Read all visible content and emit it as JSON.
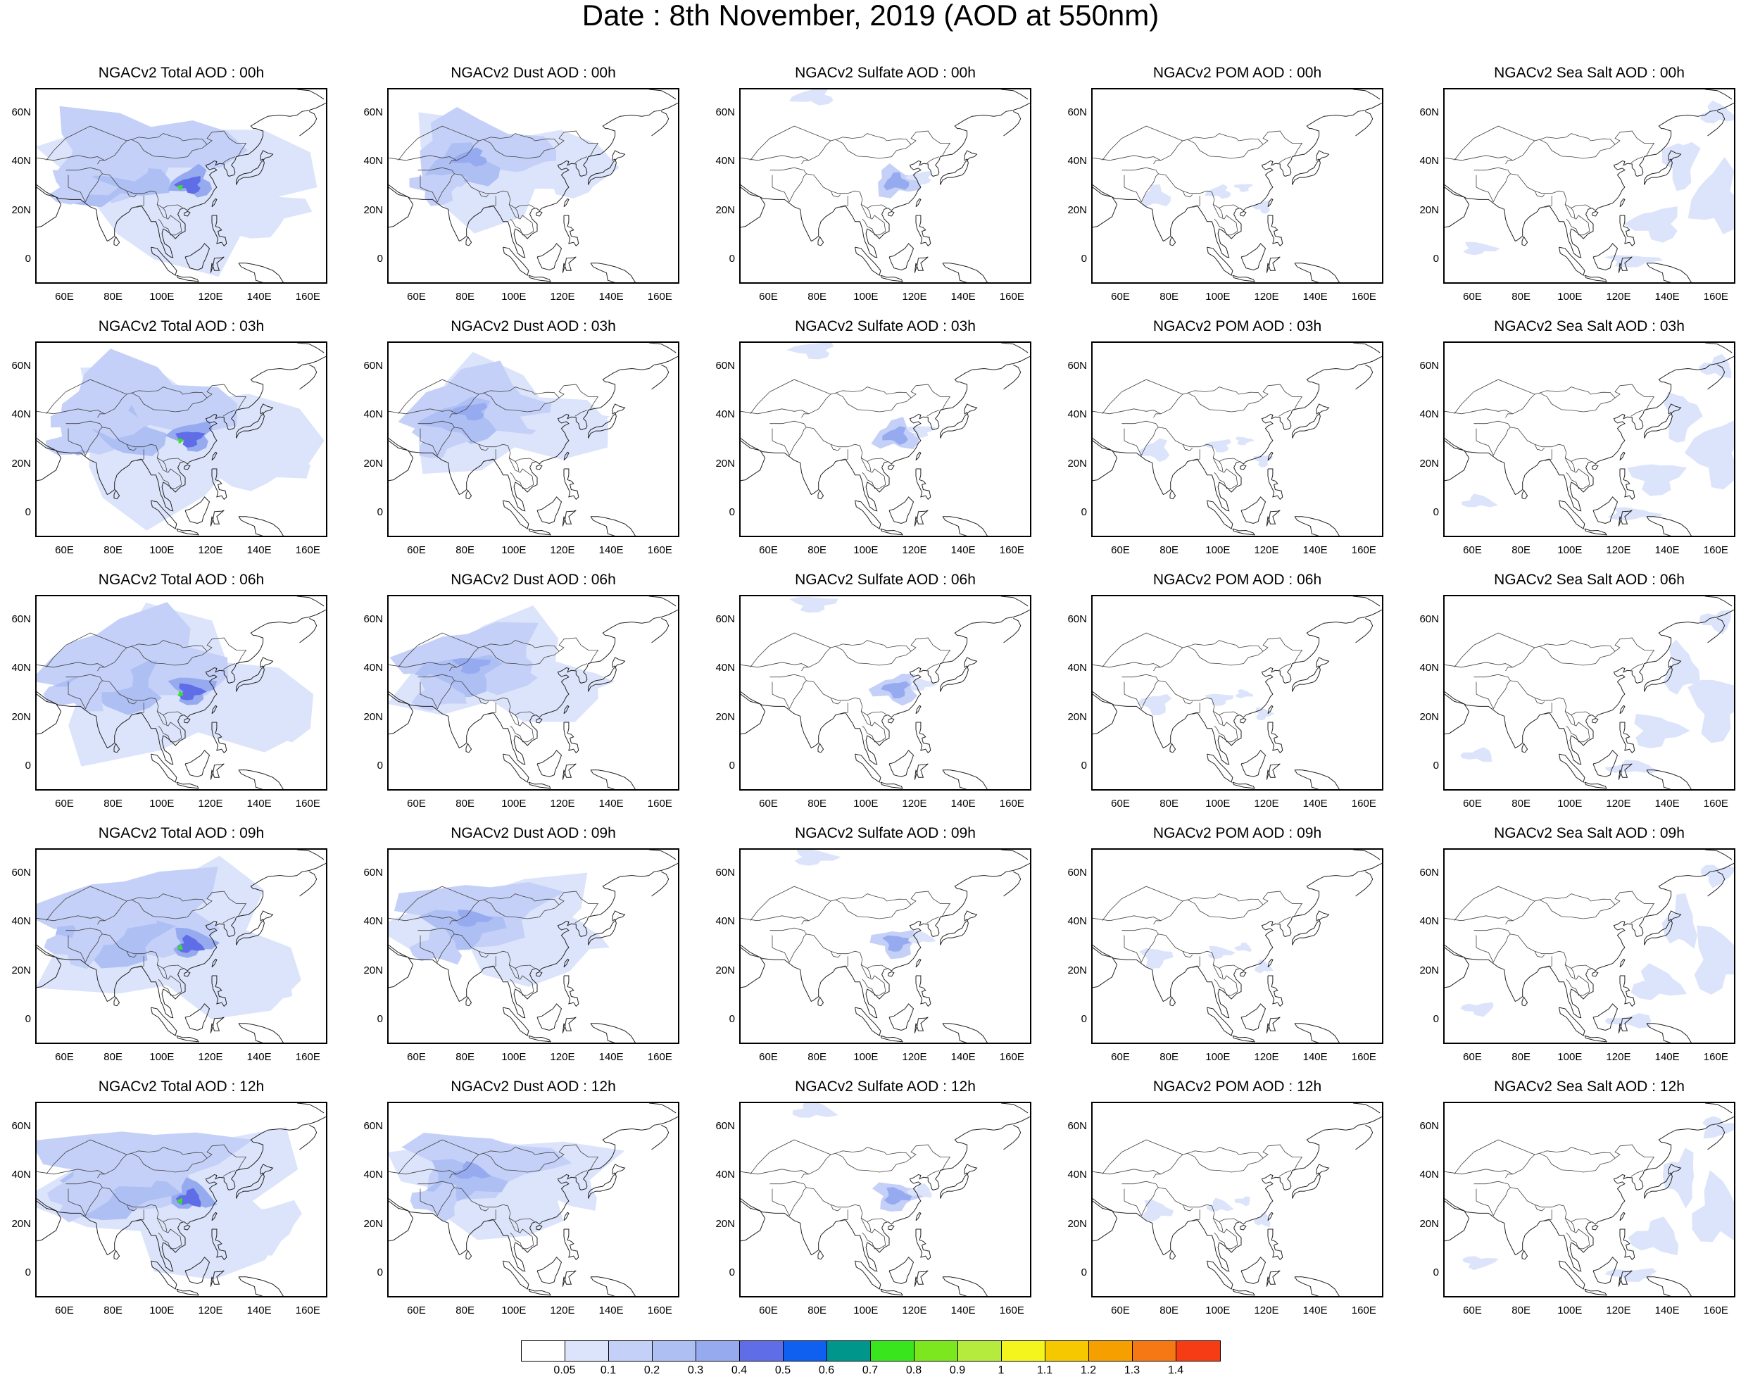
{
  "title": "Date : 8th November, 2019 (AOD at 550nm)",
  "lat_ticks": [
    "60N",
    "40N",
    "20N",
    "0"
  ],
  "lon_ticks": [
    "60E",
    "80E",
    "100E",
    "120E",
    "140E",
    "160E"
  ],
  "lon_range": [
    48,
    168
  ],
  "lat_range": [
    -10,
    70
  ],
  "panels": [
    [
      "NGACv2 Total AOD : 00h",
      "NGACv2 Dust AOD : 00h",
      "NGACv2 Sulfate AOD : 00h",
      "NGACv2 POM AOD : 00h",
      "NGACv2 Sea Salt AOD : 00h"
    ],
    [
      "NGACv2 Total AOD : 03h",
      "NGACv2 Dust AOD : 03h",
      "NGACv2 Sulfate AOD : 03h",
      "NGACv2 POM AOD : 03h",
      "NGACv2 Sea Salt AOD : 03h"
    ],
    [
      "NGACv2 Total AOD : 06h",
      "NGACv2 Dust AOD : 06h",
      "NGACv2 Sulfate AOD : 06h",
      "NGACv2 POM AOD : 06h",
      "NGACv2 Sea Salt AOD : 06h"
    ],
    [
      "NGACv2 Total AOD : 09h",
      "NGACv2 Dust AOD : 09h",
      "NGACv2 Sulfate AOD : 09h",
      "NGACv2 POM AOD : 09h",
      "NGACv2 Sea Salt  AOD : 09h"
    ],
    [
      "NGACv2 Total AOD  : 12h",
      "NGACv2 Dust AOD : 12h",
      "NGACv2 Sulfate AOD : 12h",
      "NGACv2 POM  AOD : 12h",
      "NGACv2 Sea Salt  AOD : 12h"
    ]
  ],
  "colorbar": {
    "labels": [
      "0.05",
      "0.1",
      "0.2",
      "0.3",
      "0.4",
      "0.5",
      "0.6",
      "0.7",
      "0.8",
      "0.9",
      "1",
      "1.1",
      "1.2",
      "1.3",
      "1.4"
    ],
    "colors": [
      "#ffffff",
      "#dce4fb",
      "#c4d0f7",
      "#aebff4",
      "#96aaf0",
      "#5f6ee6",
      "#0f5ff0",
      "#00968c",
      "#39e61e",
      "#7ce61e",
      "#b4eb3c",
      "#f5f51e",
      "#f5c800",
      "#f5a000",
      "#f57814",
      "#f53c14"
    ]
  },
  "map_colors": {
    "light": "#dce4fb",
    "medium": "#c4d0f7",
    "strong": "#aebff4",
    "peak": "#96aaf0",
    "core": "#5f6ee6",
    "hot": "#39e61e"
  }
}
